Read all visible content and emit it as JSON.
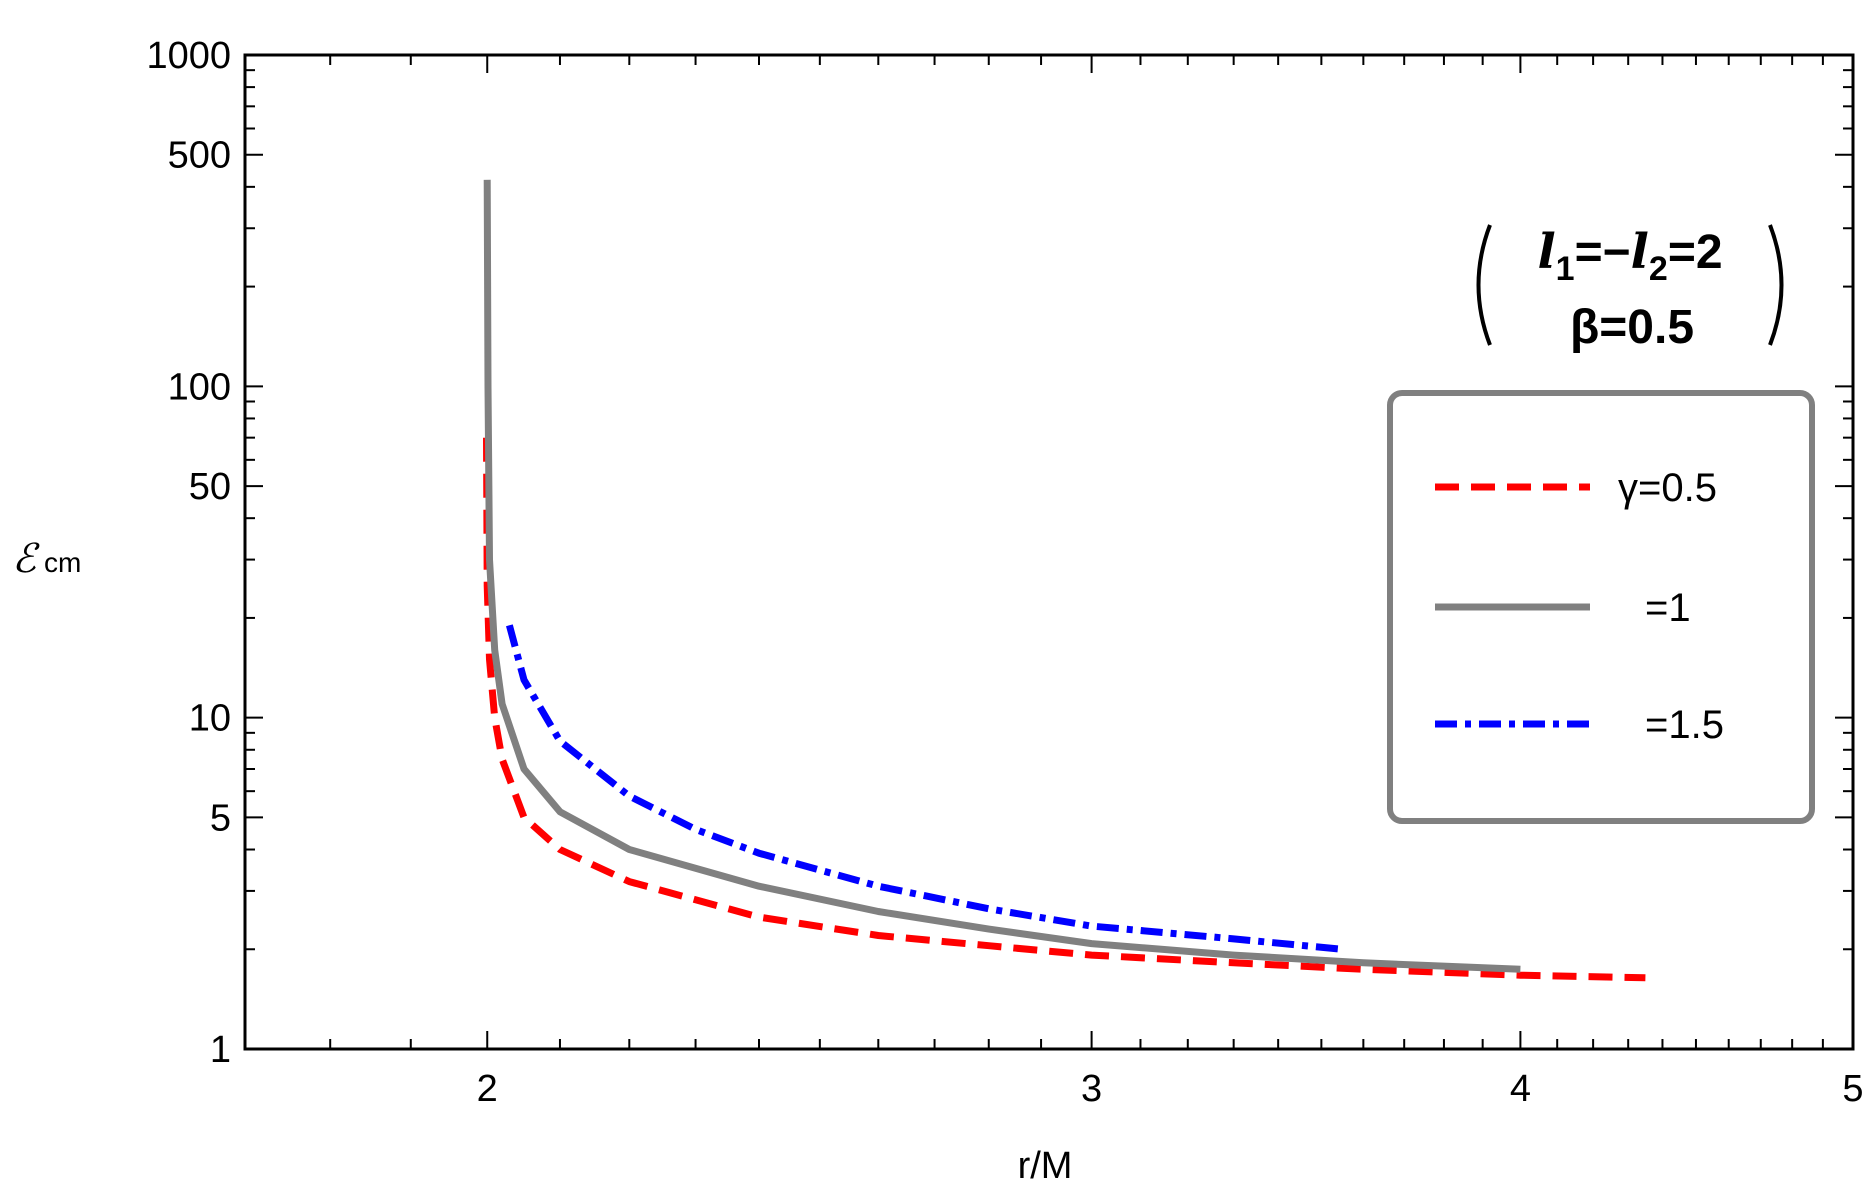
{
  "chart_data": {
    "type": "line",
    "xlabel": "r/M",
    "ylabel_main": "ℰ",
    "ylabel_sub": "cm",
    "x_scale": "log",
    "y_scale": "log",
    "xlim": [
      1.7,
      5
    ],
    "ylim": [
      1,
      1000
    ],
    "x_ticks": [
      2,
      3,
      4,
      5
    ],
    "y_ticks": [
      1,
      5,
      10,
      50,
      100,
      500,
      1000
    ],
    "grid": false,
    "legend_position": "right",
    "annotation": {
      "line1_l1": "l",
      "line1_sub1": "1",
      "line1_mid": "=−",
      "line1_l2": "l",
      "line1_sub2": "2",
      "line1_end": "=2",
      "line2": "β=0.5"
    },
    "series": [
      {
        "name": "γ=0.5",
        "legend_label": "γ=0.5",
        "color": "#ff0000",
        "style": "dashed",
        "x": [
          1.999,
          2.0,
          2.003,
          2.01,
          2.02,
          2.05,
          2.1,
          2.2,
          2.4,
          2.6,
          2.8,
          3.0,
          3.3,
          3.6,
          4.0,
          4.35
        ],
        "y": [
          70,
          25,
          15,
          10,
          7.5,
          5,
          4,
          3.2,
          2.5,
          2.2,
          2.05,
          1.92,
          1.82,
          1.74,
          1.67,
          1.64
        ]
      },
      {
        "name": "=1",
        "legend_label": "=1",
        "color": "#808080",
        "style": "solid",
        "x": [
          2.0,
          2.001,
          2.003,
          2.01,
          2.02,
          2.05,
          2.1,
          2.2,
          2.4,
          2.6,
          2.8,
          3.0,
          3.3,
          3.6,
          4.0
        ],
        "y": [
          420,
          100,
          30,
          16,
          11,
          7,
          5.2,
          4.0,
          3.1,
          2.6,
          2.3,
          2.08,
          1.92,
          1.82,
          1.74
        ]
      },
      {
        "name": "=1.5",
        "legend_label": "=1.5",
        "color": "#0000ff",
        "style": "dashdot",
        "x": [
          2.03,
          2.05,
          2.1,
          2.2,
          2.3,
          2.4,
          2.6,
          2.8,
          3.0,
          3.3,
          3.55
        ],
        "y": [
          19,
          13,
          8.5,
          5.8,
          4.6,
          3.9,
          3.1,
          2.65,
          2.35,
          2.15,
          2.0
        ]
      }
    ]
  }
}
